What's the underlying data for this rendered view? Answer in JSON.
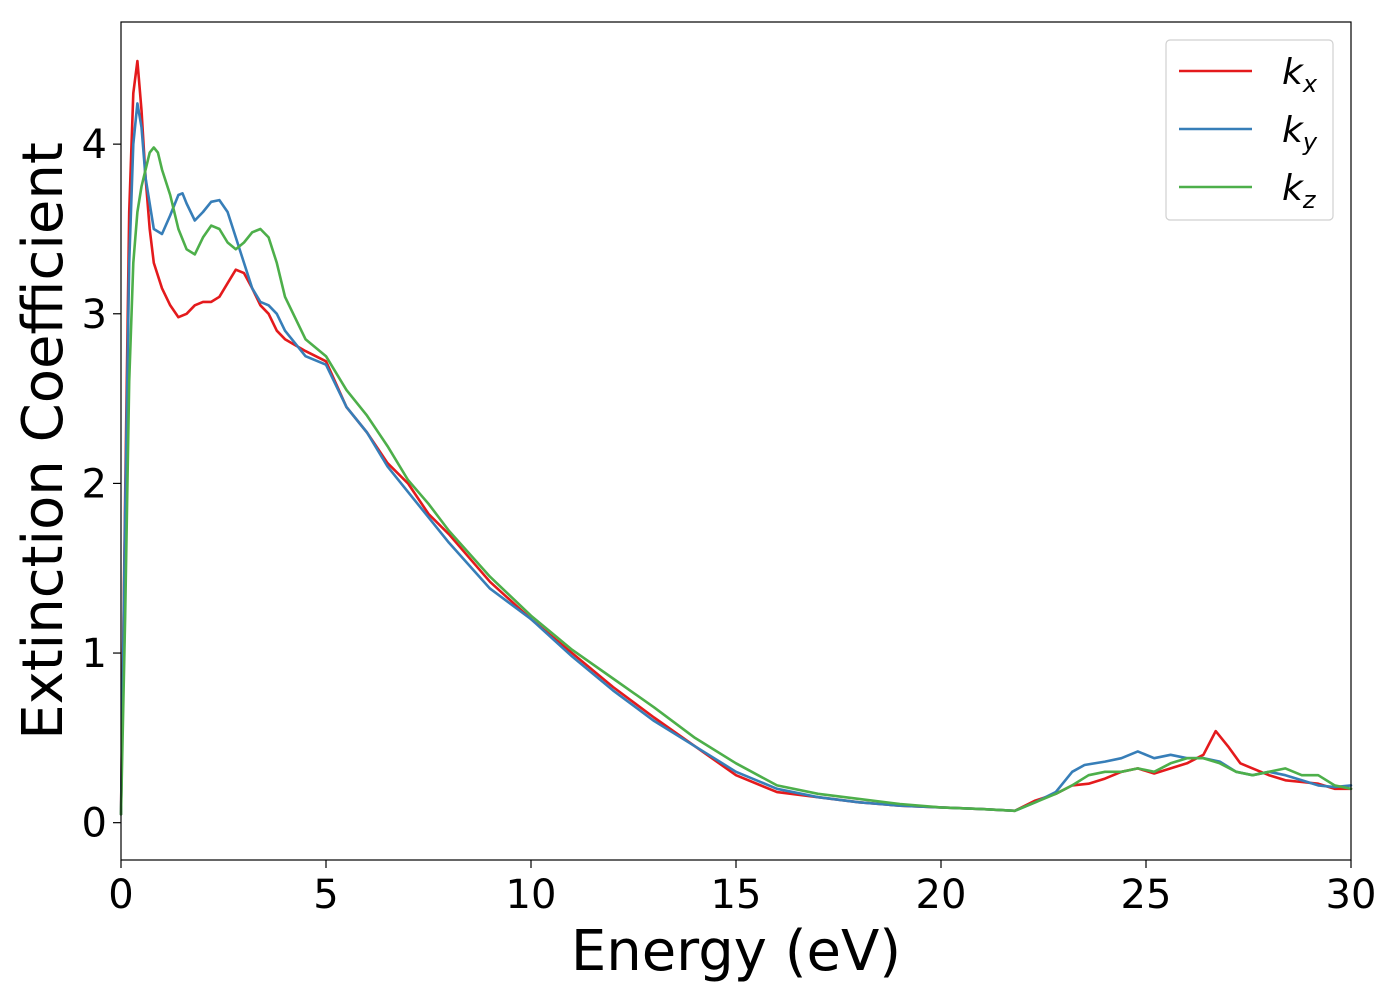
{
  "chart_data": {
    "type": "line",
    "title": "",
    "xlabel": "Energy (eV)",
    "ylabel": "Extinction Coefficient",
    "xlim": [
      0,
      30
    ],
    "ylim": [
      -0.22,
      4.72
    ],
    "xticks": [
      0,
      5,
      10,
      15,
      20,
      25,
      30
    ],
    "yticks": [
      0,
      1,
      2,
      3,
      4
    ],
    "grid": false,
    "legend_position": "top-right",
    "series": [
      {
        "name": "k",
        "subscript": "x",
        "color": "#e41a1c",
        "x": [
          0,
          0.1,
          0.2,
          0.3,
          0.4,
          0.5,
          0.6,
          0.7,
          0.8,
          1.0,
          1.2,
          1.4,
          1.6,
          1.8,
          2.0,
          2.2,
          2.4,
          2.6,
          2.8,
          3.0,
          3.2,
          3.4,
          3.6,
          3.8,
          4.0,
          4.5,
          5.0,
          5.5,
          6.0,
          6.5,
          7.0,
          7.5,
          8.0,
          9.0,
          10.0,
          11.0,
          12.0,
          13.0,
          14.0,
          15.0,
          16.0,
          17.0,
          18.0,
          19.0,
          20.0,
          21.0,
          21.8,
          22.3,
          22.8,
          23.2,
          23.6,
          24.0,
          24.4,
          24.8,
          25.2,
          25.6,
          26.0,
          26.4,
          26.7,
          27.0,
          27.3,
          27.6,
          28.0,
          28.4,
          28.8,
          29.2,
          29.6,
          30.0
        ],
        "y": [
          0.05,
          1.9,
          3.6,
          4.3,
          4.49,
          4.2,
          3.8,
          3.5,
          3.3,
          3.15,
          3.05,
          2.98,
          3.0,
          3.05,
          3.07,
          3.07,
          3.1,
          3.18,
          3.26,
          3.24,
          3.15,
          3.05,
          3.0,
          2.9,
          2.85,
          2.78,
          2.72,
          2.45,
          2.3,
          2.12,
          2.0,
          1.82,
          1.7,
          1.42,
          1.2,
          1.0,
          0.8,
          0.62,
          0.45,
          0.28,
          0.18,
          0.15,
          0.12,
          0.1,
          0.09,
          0.08,
          0.07,
          0.13,
          0.17,
          0.22,
          0.23,
          0.26,
          0.3,
          0.32,
          0.29,
          0.32,
          0.35,
          0.4,
          0.54,
          0.45,
          0.35,
          0.32,
          0.28,
          0.25,
          0.24,
          0.23,
          0.2,
          0.2
        ]
      },
      {
        "name": "k",
        "subscript": "y",
        "color": "#377eb8",
        "x": [
          0,
          0.1,
          0.2,
          0.3,
          0.4,
          0.5,
          0.6,
          0.8,
          1.0,
          1.2,
          1.4,
          1.5,
          1.6,
          1.8,
          2.0,
          2.2,
          2.4,
          2.6,
          2.8,
          3.0,
          3.2,
          3.4,
          3.6,
          3.8,
          4.0,
          4.5,
          5.0,
          5.5,
          6.0,
          6.5,
          7.0,
          7.5,
          8.0,
          9.0,
          10.0,
          11.0,
          12.0,
          13.0,
          14.0,
          15.0,
          16.0,
          17.0,
          18.0,
          19.0,
          20.0,
          21.0,
          21.8,
          22.3,
          22.8,
          23.2,
          23.5,
          24.0,
          24.4,
          24.8,
          25.2,
          25.6,
          26.0,
          26.4,
          26.8,
          27.2,
          27.6,
          28.0,
          28.4,
          28.8,
          29.2,
          29.6,
          30.0
        ],
        "y": [
          0.05,
          1.8,
          3.3,
          4.0,
          4.24,
          4.1,
          3.8,
          3.5,
          3.47,
          3.58,
          3.7,
          3.71,
          3.65,
          3.55,
          3.6,
          3.66,
          3.67,
          3.6,
          3.45,
          3.3,
          3.15,
          3.07,
          3.05,
          3.0,
          2.9,
          2.75,
          2.7,
          2.45,
          2.3,
          2.1,
          1.95,
          1.8,
          1.65,
          1.38,
          1.2,
          0.98,
          0.78,
          0.6,
          0.45,
          0.3,
          0.2,
          0.15,
          0.12,
          0.1,
          0.09,
          0.08,
          0.07,
          0.12,
          0.18,
          0.3,
          0.34,
          0.36,
          0.38,
          0.42,
          0.38,
          0.4,
          0.38,
          0.38,
          0.36,
          0.3,
          0.28,
          0.3,
          0.28,
          0.25,
          0.22,
          0.21,
          0.22
        ]
      },
      {
        "name": "k",
        "subscript": "z",
        "color": "#4daf4a",
        "x": [
          0,
          0.1,
          0.2,
          0.3,
          0.4,
          0.5,
          0.6,
          0.7,
          0.8,
          0.9,
          1.0,
          1.2,
          1.4,
          1.6,
          1.8,
          2.0,
          2.2,
          2.4,
          2.6,
          2.8,
          3.0,
          3.2,
          3.4,
          3.6,
          3.8,
          4.0,
          4.5,
          5.0,
          5.5,
          6.0,
          6.5,
          7.0,
          7.5,
          8.0,
          9.0,
          10.0,
          11.0,
          12.0,
          13.0,
          14.0,
          15.0,
          16.0,
          17.0,
          18.0,
          19.0,
          20.0,
          21.0,
          21.8,
          22.3,
          22.8,
          23.2,
          23.6,
          24.0,
          24.4,
          24.8,
          25.2,
          25.6,
          26.0,
          26.4,
          26.8,
          27.2,
          27.6,
          28.0,
          28.4,
          28.8,
          29.2,
          29.6,
          30.0
        ],
        "y": [
          0.05,
          1.2,
          2.6,
          3.3,
          3.6,
          3.75,
          3.85,
          3.95,
          3.98,
          3.95,
          3.85,
          3.7,
          3.5,
          3.38,
          3.35,
          3.45,
          3.52,
          3.5,
          3.42,
          3.38,
          3.42,
          3.48,
          3.5,
          3.45,
          3.3,
          3.1,
          2.85,
          2.75,
          2.55,
          2.4,
          2.22,
          2.02,
          1.88,
          1.72,
          1.45,
          1.22,
          1.02,
          0.85,
          0.68,
          0.5,
          0.35,
          0.22,
          0.17,
          0.14,
          0.11,
          0.09,
          0.08,
          0.07,
          0.12,
          0.17,
          0.22,
          0.28,
          0.3,
          0.3,
          0.32,
          0.3,
          0.35,
          0.38,
          0.38,
          0.35,
          0.3,
          0.28,
          0.3,
          0.32,
          0.28,
          0.28,
          0.22,
          0.2
        ]
      }
    ]
  }
}
